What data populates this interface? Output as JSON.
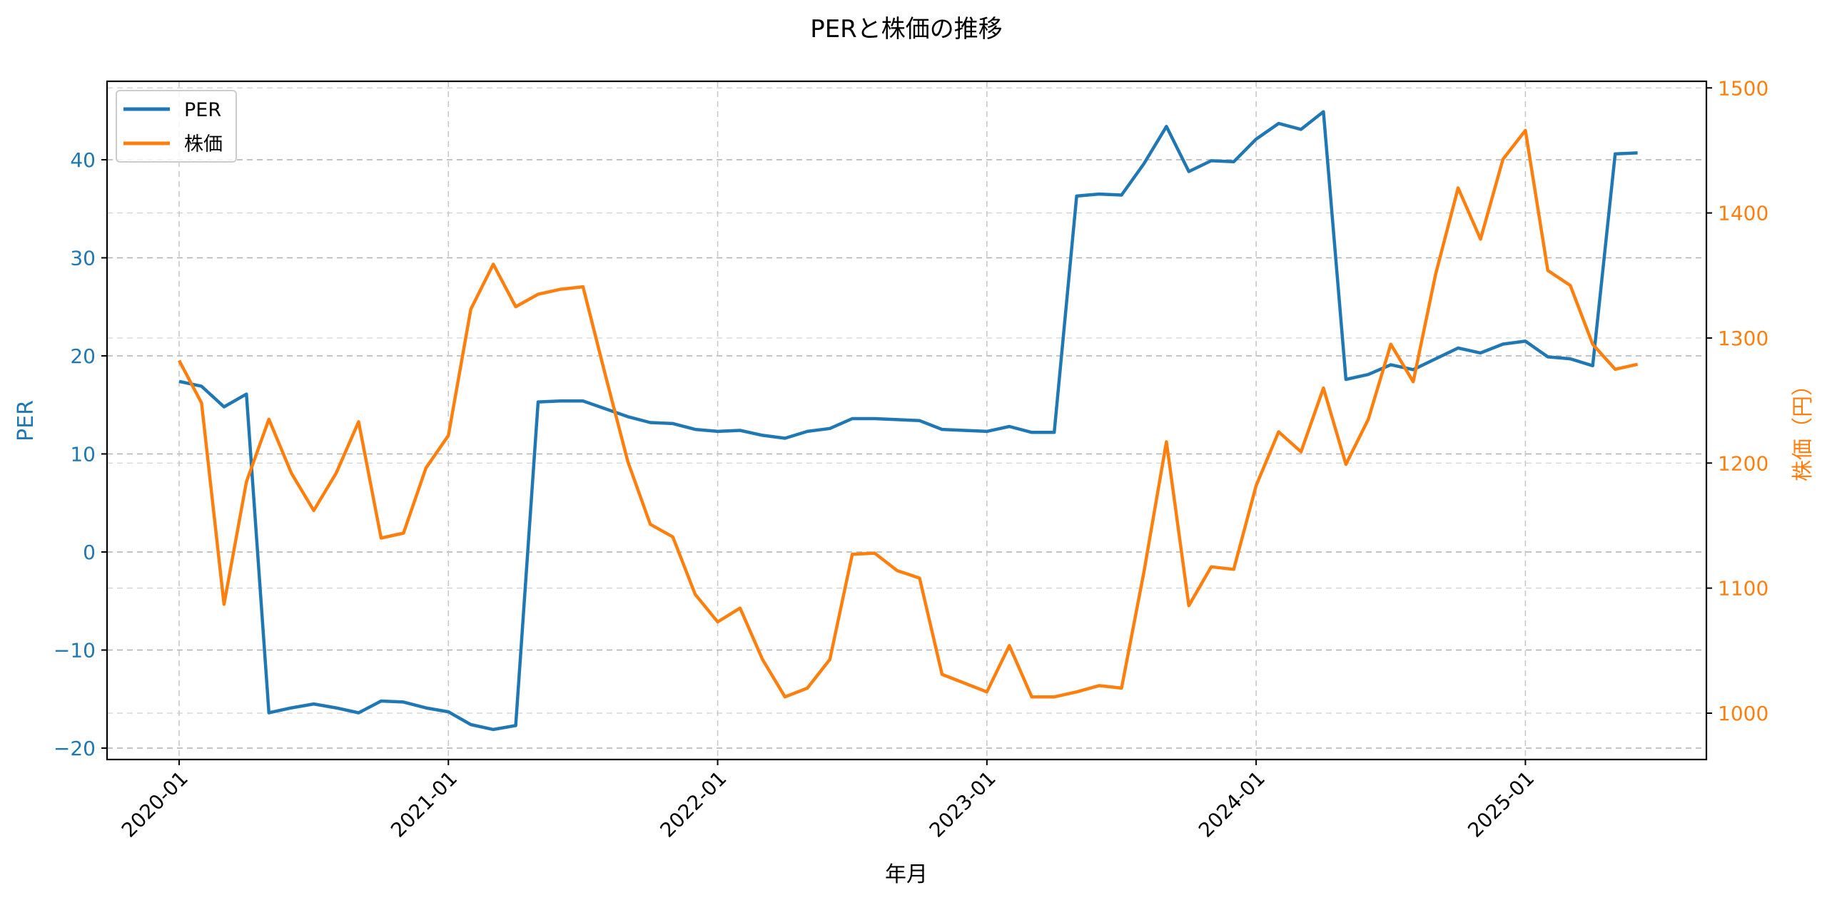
{
  "chart_data": {
    "type": "line",
    "title": "PERと株価の推移",
    "xlabel": "年月",
    "ylabel_left": "PER",
    "ylabel_right": "株価（円）",
    "legend": [
      "PER",
      "株価"
    ],
    "legend_position": "upper left",
    "grid": true,
    "colors": {
      "PER": "#1f77b4",
      "株価": "#ff7f0e"
    },
    "x_tick_labels": [
      "2020-01",
      "2021-01",
      "2022-01",
      "2023-01",
      "2024-01",
      "2025-01"
    ],
    "y_left_ticks": [
      -20,
      -10,
      0,
      10,
      20,
      30,
      40
    ],
    "y_right_ticks": [
      1000,
      1100,
      1200,
      1300,
      1400,
      1500
    ],
    "y_left_range": [
      -21.4,
      47.7
    ],
    "y_right_range": [
      967,
      1513
    ],
    "x": [
      "2020-01",
      "2020-02",
      "2020-03",
      "2020-04",
      "2020-05",
      "2020-06",
      "2020-07",
      "2020-08",
      "2020-09",
      "2020-10",
      "2020-11",
      "2020-12",
      "2021-01",
      "2021-02",
      "2021-03",
      "2021-04",
      "2021-05",
      "2021-06",
      "2021-07",
      "2021-08",
      "2021-09",
      "2021-10",
      "2021-11",
      "2021-12",
      "2022-01",
      "2022-02",
      "2022-03",
      "2022-04",
      "2022-05",
      "2022-06",
      "2022-07",
      "2022-08",
      "2022-09",
      "2022-10",
      "2022-11",
      "2022-12",
      "2023-01",
      "2023-02",
      "2023-03",
      "2023-04",
      "2023-05",
      "2023-06",
      "2023-07",
      "2023-08",
      "2023-09",
      "2023-10",
      "2023-11",
      "2023-12",
      "2024-01",
      "2024-02",
      "2024-03",
      "2024-04",
      "2024-05",
      "2024-06",
      "2024-07",
      "2024-08",
      "2024-09",
      "2024-10",
      "2024-11",
      "2024-12",
      "2025-01",
      "2025-02",
      "2025-03",
      "2025-04",
      "2025-05",
      "2025-06"
    ],
    "series": [
      {
        "name": "PER",
        "axis": "left",
        "values": [
          17.4,
          16.9,
          14.8,
          16.1,
          -16.4,
          -15.9,
          -15.5,
          -15.9,
          -16.4,
          -15.2,
          -15.3,
          -15.9,
          -16.3,
          -17.6,
          -18.1,
          -17.7,
          15.3,
          15.4,
          15.4,
          14.6,
          13.8,
          13.2,
          13.1,
          12.5,
          12.3,
          12.4,
          11.9,
          11.6,
          12.3,
          12.6,
          13.6,
          13.6,
          13.5,
          13.4,
          12.5,
          12.4,
          12.3,
          12.8,
          12.2,
          12.2,
          36.3,
          36.5,
          36.4,
          39.6,
          43.4,
          38.8,
          39.9,
          39.8,
          42.1,
          43.7,
          43.1,
          44.9,
          17.6,
          18.1,
          19.1,
          18.6,
          19.7,
          20.8,
          20.3,
          21.2,
          21.5,
          19.9,
          19.7,
          19.0,
          40.6,
          40.7
        ]
      },
      {
        "name": "株価",
        "axis": "right",
        "values": [
          1282,
          1248,
          1087,
          1185,
          1235,
          1192,
          1162,
          1192,
          1233,
          1140,
          1144,
          1196,
          1222,
          1323,
          1359,
          1325,
          1335,
          1339,
          1341,
          1270,
          1201,
          1151,
          1141,
          1095,
          1073,
          1084,
          1043,
          1013,
          1020,
          1043,
          1127,
          1128,
          1114,
          1108,
          1031,
          1024,
          1017,
          1054,
          1013,
          1013,
          1017,
          1022,
          1020,
          1113,
          1217,
          1086,
          1117,
          1115,
          1182,
          1225,
          1209,
          1260,
          1199,
          1235,
          1295,
          1265,
          1351,
          1420,
          1379,
          1443,
          1466,
          1354,
          1342,
          1295,
          1275,
          1279
        ]
      }
    ]
  }
}
